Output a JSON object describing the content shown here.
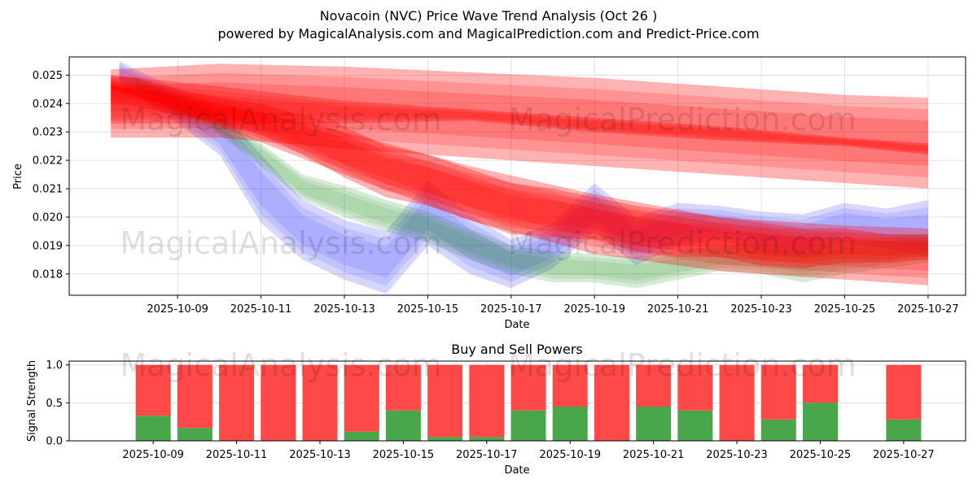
{
  "title_line1": "Novacoin (NVC) Price Wave Trend Analysis (Oct 26 )",
  "title_line2": "powered by MagicalAnalysis.com and MagicalPrediction.com and Predict-Price.com",
  "watermarks": [
    "MagicalAnalysis.com",
    "MagicalPrediction.com"
  ],
  "colors": {
    "blue": "#0000ff",
    "green": "#008000",
    "red": "#ff0000",
    "purple": "#800080",
    "buy": "#4aa64a",
    "sell": "#ff4848"
  },
  "chart_data": [
    {
      "type": "area",
      "title": "",
      "xlabel": "Date",
      "ylabel": "Price",
      "ylim": [
        0.01725,
        0.02564
      ],
      "xlim_days": [
        6.4,
        27.9
      ],
      "grid": true,
      "x_tick_labels": [
        "2025-10-09",
        "2025-10-11",
        "2025-10-13",
        "2025-10-15",
        "2025-10-17",
        "2025-10-19",
        "2025-10-21",
        "2025-10-23",
        "2025-10-25",
        "2025-10-27"
      ],
      "x_tick_days": [
        9,
        11,
        13,
        15,
        17,
        19,
        21,
        23,
        25,
        27
      ],
      "y_tick_labels": [
        "0.018",
        "0.019",
        "0.020",
        "0.021",
        "0.022",
        "0.023",
        "0.024",
        "0.025"
      ],
      "y_ticks": [
        0.018,
        0.019,
        0.02,
        0.021,
        0.022,
        0.023,
        0.024,
        0.025
      ],
      "series": [
        {
          "name": "blue wave band",
          "color": "blue",
          "x_days": [
            7.6,
            8,
            9,
            10,
            11,
            12,
            13,
            14,
            15,
            16,
            17,
            18,
            19,
            20,
            21,
            22,
            23,
            24,
            25,
            26,
            27
          ],
          "upper": [
            0.0255,
            0.0252,
            0.0245,
            0.0238,
            0.0222,
            0.0206,
            0.0199,
            0.0195,
            0.0213,
            0.0201,
            0.0192,
            0.0198,
            0.0212,
            0.02,
            0.0205,
            0.0204,
            0.0202,
            0.0201,
            0.0205,
            0.0203,
            0.0206
          ],
          "lower": [
            0.0247,
            0.0243,
            0.0233,
            0.0222,
            0.0198,
            0.0185,
            0.0178,
            0.0173,
            0.019,
            0.018,
            0.0175,
            0.0182,
            0.0195,
            0.0183,
            0.019,
            0.0192,
            0.0188,
            0.0186,
            0.0191,
            0.0189,
            0.0186
          ]
        },
        {
          "name": "green wave band",
          "color": "green",
          "x_days": [
            8,
            9,
            10,
            11,
            12,
            13,
            14,
            15,
            16,
            17,
            18,
            19,
            20,
            21,
            22,
            23,
            24,
            25,
            26,
            27
          ],
          "upper": [
            0.0249,
            0.0243,
            0.0236,
            0.0226,
            0.0215,
            0.0211,
            0.0206,
            0.0202,
            0.0196,
            0.019,
            0.0188,
            0.0187,
            0.0186,
            0.0188,
            0.019,
            0.0191,
            0.019,
            0.0192,
            0.0193,
            0.0194
          ],
          "lower": [
            0.0244,
            0.0237,
            0.0229,
            0.0218,
            0.0206,
            0.02,
            0.0195,
            0.0191,
            0.0185,
            0.018,
            0.0177,
            0.0177,
            0.0175,
            0.0178,
            0.0181,
            0.018,
            0.0177,
            0.018,
            0.0182,
            0.0184
          ]
        },
        {
          "name": "red wave band (short-term)",
          "color": "red",
          "x_days": [
            7.4,
            8,
            9,
            10,
            11,
            12,
            13,
            14,
            15,
            16,
            17,
            18,
            19,
            20,
            21,
            22,
            23,
            24,
            25,
            26,
            27
          ],
          "upper": [
            0.025,
            0.0249,
            0.0245,
            0.0242,
            0.024,
            0.0236,
            0.0232,
            0.0225,
            0.0222,
            0.0217,
            0.0212,
            0.021,
            0.0207,
            0.0204,
            0.0202,
            0.02,
            0.0198,
            0.0196,
            0.0196,
            0.0194,
            0.0194
          ],
          "lower": [
            0.024,
            0.0239,
            0.0236,
            0.0233,
            0.0229,
            0.0222,
            0.0214,
            0.0207,
            0.0204,
            0.0199,
            0.0194,
            0.0193,
            0.0192,
            0.0188,
            0.0186,
            0.0186,
            0.0183,
            0.0182,
            0.0184,
            0.0184,
            0.0185
          ]
        },
        {
          "name": "red wave band (long-term upper)",
          "color": "red",
          "x_days": [
            7.4,
            10,
            13,
            16,
            19,
            22,
            25,
            27
          ],
          "upper": [
            0.0252,
            0.0254,
            0.0253,
            0.0251,
            0.0249,
            0.0246,
            0.0243,
            0.0242
          ],
          "lower": [
            0.0228,
            0.0228,
            0.0224,
            0.0221,
            0.0218,
            0.0215,
            0.0212,
            0.021
          ]
        },
        {
          "name": "red wave band (long-term core)",
          "color": "red",
          "x_days": [
            7.4,
            10,
            13,
            16,
            19,
            22,
            25,
            27
          ],
          "upper": [
            0.025,
            0.0246,
            0.0241,
            0.0238,
            0.0235,
            0.0232,
            0.0228,
            0.0226
          ],
          "lower": [
            0.0233,
            0.0233,
            0.0233,
            0.0234,
            0.023,
            0.0227,
            0.0225,
            0.0222
          ]
        },
        {
          "name": "red wave band (long-term lower)",
          "color": "red",
          "x_days": [
            7.4,
            10,
            13,
            16,
            19,
            22,
            25,
            27
          ],
          "upper": [
            0.0247,
            0.024,
            0.023,
            0.0218,
            0.0208,
            0.02,
            0.0197,
            0.0196
          ],
          "lower": [
            0.0245,
            0.0232,
            0.0215,
            0.0199,
            0.0187,
            0.0181,
            0.0178,
            0.0176
          ]
        }
      ]
    },
    {
      "type": "bar",
      "title": "Buy and Sell Powers",
      "xlabel": "Date",
      "ylabel": "Signal Strength",
      "ylim": [
        0,
        1.05
      ],
      "grid": true,
      "x_tick_labels": [
        "2025-10-09",
        "2025-10-11",
        "2025-10-13",
        "2025-10-15",
        "2025-10-17",
        "2025-10-19",
        "2025-10-21",
        "2025-10-23",
        "2025-10-25",
        "2025-10-27"
      ],
      "x_tick_days": [
        9,
        11,
        13,
        15,
        17,
        19,
        21,
        23,
        25,
        27
      ],
      "y_tick_labels": [
        "0.0",
        "0.5",
        "1.0"
      ],
      "y_ticks": [
        0,
        0.5,
        1.0
      ],
      "categories_days": [
        9,
        10,
        11,
        12,
        13,
        14,
        15,
        16,
        17,
        18,
        19,
        20,
        21,
        22,
        23,
        24,
        25,
        27
      ],
      "series": [
        {
          "name": "Buy",
          "color": "buy",
          "values": [
            0.33,
            0.17,
            0.0,
            0.0,
            0.0,
            0.12,
            0.4,
            0.05,
            0.05,
            0.4,
            0.45,
            0.0,
            0.45,
            0.4,
            0.0,
            0.28,
            0.5,
            0.28
          ]
        },
        {
          "name": "Sell",
          "color": "sell",
          "values": [
            0.67,
            0.83,
            1.0,
            1.0,
            1.0,
            0.88,
            0.6,
            0.95,
            0.95,
            0.6,
            0.55,
            1.0,
            0.55,
            0.6,
            1.0,
            0.72,
            0.5,
            0.72
          ]
        }
      ]
    }
  ]
}
